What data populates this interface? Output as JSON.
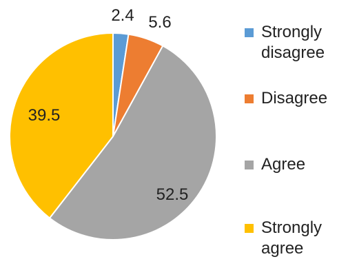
{
  "chart_data": {
    "type": "pie",
    "categories": [
      "Strongly disagree",
      "Disagree",
      "Agree",
      "Strongly agree"
    ],
    "values": [
      2.4,
      5.6,
      52.5,
      39.5
    ],
    "data_labels": [
      "2.4",
      "5.6",
      "52.5",
      "39.5"
    ],
    "colors": [
      "#5B9BD5",
      "#ED7D31",
      "#A5A5A5",
      "#FFC000"
    ],
    "legend": {
      "placement": "right",
      "entries": [
        {
          "label": "Strongly\ndisagree",
          "color": "#5B9BD5"
        },
        {
          "label": "Disagree",
          "color": "#ED7D31"
        },
        {
          "label": "Agree",
          "color": "#A5A5A5"
        },
        {
          "label": "Strongly\nagree",
          "color": "#FFC000"
        }
      ]
    },
    "start_angle": "top (12 o'clock)",
    "direction": "clockwise"
  }
}
